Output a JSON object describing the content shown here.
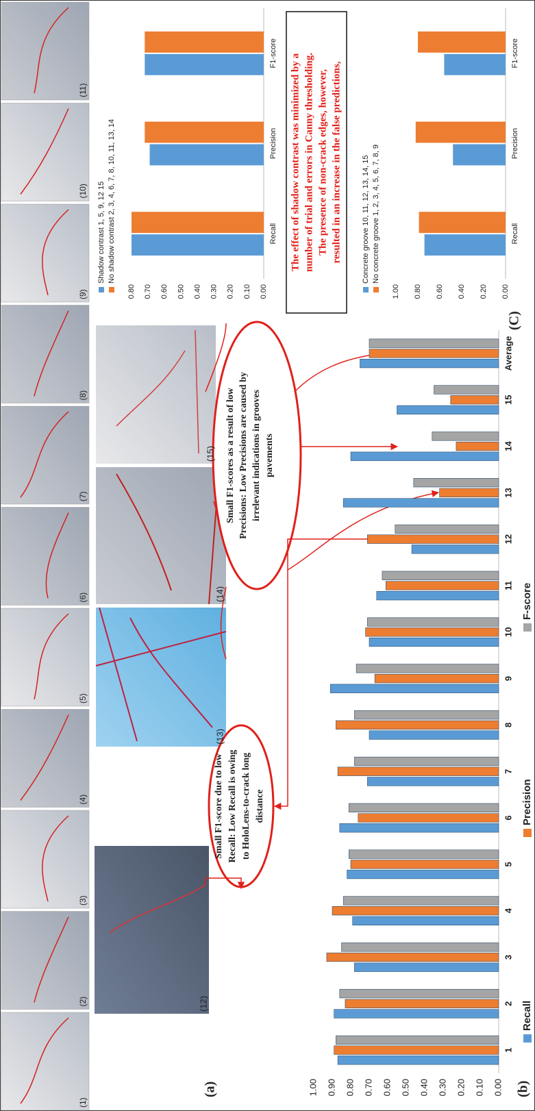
{
  "figure": {
    "panel_labels": [
      "(a)",
      "(b)",
      "(C)"
    ],
    "image_labels": [
      "(1)",
      "(2)",
      "(3)",
      "(4)",
      "(5)",
      "(6)",
      "(7)",
      "(8)",
      "(9)",
      "(10)",
      "(11)",
      "(12)",
      "(13)",
      "(14)",
      "(15)"
    ],
    "callouts": [
      {
        "lines": [
          "Small F1-score due to low",
          "Recall: Low Recall is owing",
          "to HoloLens-to-crack long",
          "distance"
        ]
      },
      {
        "lines": [
          "Small F1-scores as a result of low",
          "Precisions: Low Precisions are caused by",
          "irrelevant indications in grooves",
          "pavements"
        ]
      }
    ],
    "note": {
      "lines": [
        "The effect of shadow contrast was minimized by a",
        "number of trial and errors in Canny thresholding.",
        "The presence of non-crack edges, however,",
        "resulted in an increase in the false predictions,"
      ]
    }
  },
  "chart_data": [
    {
      "type": "bar",
      "legend": "bottom",
      "grid": false,
      "categories": [
        "1",
        "2",
        "3",
        "4",
        "5",
        "6",
        "7",
        "8",
        "9",
        "10",
        "11",
        "12",
        "13",
        "14",
        "15",
        "Average"
      ],
      "series": [
        {
          "name": "Recall",
          "color": "#5b9bd5",
          "values": [
            0.87,
            0.89,
            0.78,
            0.79,
            0.82,
            0.86,
            0.71,
            0.7,
            0.91,
            0.7,
            0.66,
            0.47,
            0.84,
            0.8,
            0.55,
            0.75
          ]
        },
        {
          "name": "Precision",
          "color": "#ed7d31",
          "values": [
            0.89,
            0.83,
            0.93,
            0.9,
            0.8,
            0.76,
            0.87,
            0.88,
            0.67,
            0.72,
            0.61,
            0.71,
            0.32,
            0.23,
            0.26,
            0.7
          ]
        },
        {
          "name": "F-score",
          "color": "#a5a5a5",
          "values": [
            0.88,
            0.86,
            0.85,
            0.84,
            0.81,
            0.81,
            0.78,
            0.78,
            0.77,
            0.71,
            0.63,
            0.56,
            0.46,
            0.36,
            0.35,
            0.7
          ]
        }
      ],
      "ylim": [
        0,
        1
      ],
      "yticks": [
        {
          "value": 0,
          "label": "0.00"
        },
        {
          "value": 0.1,
          "label": "0.10"
        },
        {
          "value": 0.2,
          "label": "0.20"
        },
        {
          "value": 0.3,
          "label": "0.30"
        },
        {
          "value": 0.4,
          "label": "0.40"
        },
        {
          "value": 0.5,
          "label": "0.50"
        },
        {
          "value": 0.6,
          "label": "0.60"
        },
        {
          "value": 0.7,
          "label": "0.70"
        },
        {
          "value": 0.8,
          "label": "0.80"
        },
        {
          "value": 0.9,
          "label": "0.90"
        },
        {
          "value": 1,
          "label": "1.00"
        }
      ]
    },
    {
      "type": "bar",
      "legend": "top-left",
      "grid": false,
      "categories": [
        "Recall",
        "Precision",
        "F1-score"
      ],
      "series": [
        {
          "name": "Shadow contrast 1, 5, 9, 12 15",
          "color": "#5b9bd5",
          "values": [
            0.8,
            0.69,
            0.72
          ]
        },
        {
          "name": "No shadow contrast 2, 3, 4, 6, 7, 8, 10, 11, 13, 14",
          "color": "#ed7d31",
          "values": [
            0.8,
            0.72,
            0.72
          ]
        }
      ],
      "ylim": [
        0,
        0.8
      ],
      "yticks": [
        {
          "value": 0,
          "label": "0.00"
        },
        {
          "value": 0.1,
          "label": "0.10"
        },
        {
          "value": 0.2,
          "label": "0.20"
        },
        {
          "value": 0.3,
          "label": "0.30"
        },
        {
          "value": 0.4,
          "label": "0.40"
        },
        {
          "value": 0.5,
          "label": "0.50"
        },
        {
          "value": 0.6,
          "label": "0.60"
        },
        {
          "value": 0.7,
          "label": "0.70"
        },
        {
          "value": 0.8,
          "label": "0.80"
        }
      ]
    },
    {
      "type": "bar",
      "legend": "top-left",
      "grid": false,
      "categories": [
        "Recall",
        "Precision",
        "F1-score"
      ],
      "series": [
        {
          "name": "Concrete groove 10, 11, 12, 13, 14, 15",
          "color": "#5b9bd5",
          "values": [
            0.74,
            0.48,
            0.56
          ]
        },
        {
          "name": "No concrete groove 1, 2, 3, 4, 5, 6, 7, 8, 9",
          "color": "#ed7d31",
          "values": [
            0.79,
            0.82,
            0.8
          ]
        }
      ],
      "ylim": [
        0,
        1
      ],
      "yticks": [
        {
          "value": 0,
          "label": "0.00"
        },
        {
          "value": 0.2,
          "label": "0.20"
        },
        {
          "value": 0.4,
          "label": "0.40"
        },
        {
          "value": 0.6,
          "label": "0.60"
        },
        {
          "value": 0.8,
          "label": "0.80"
        },
        {
          "value": 1,
          "label": "1.00"
        }
      ]
    }
  ]
}
